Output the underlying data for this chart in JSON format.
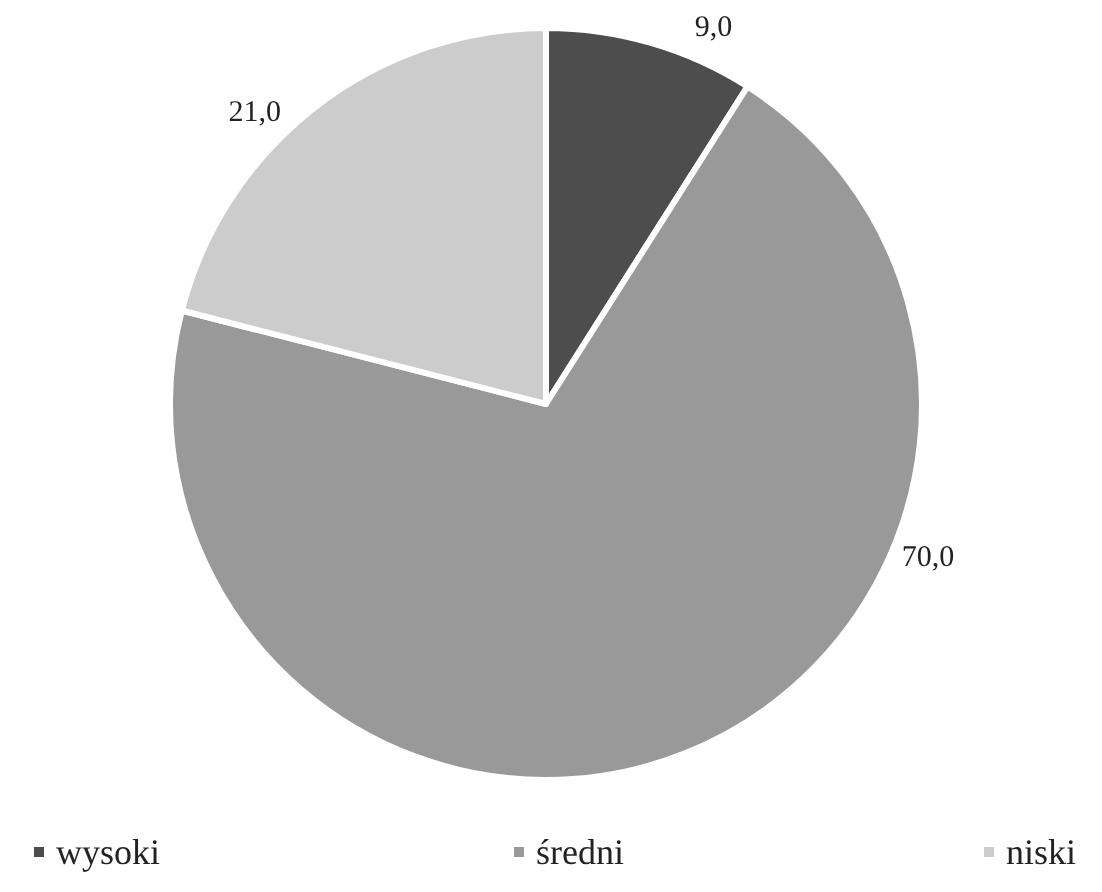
{
  "chart_data": {
    "type": "pie",
    "categories": [
      "wysoki",
      "średni",
      "niski"
    ],
    "values": [
      9,
      70,
      21
    ],
    "value_labels": [
      "9,0",
      "70,0",
      "21,0"
    ],
    "colors": [
      "#4d4d4d",
      "#999999",
      "#cccccc"
    ],
    "legend": "bottom"
  }
}
